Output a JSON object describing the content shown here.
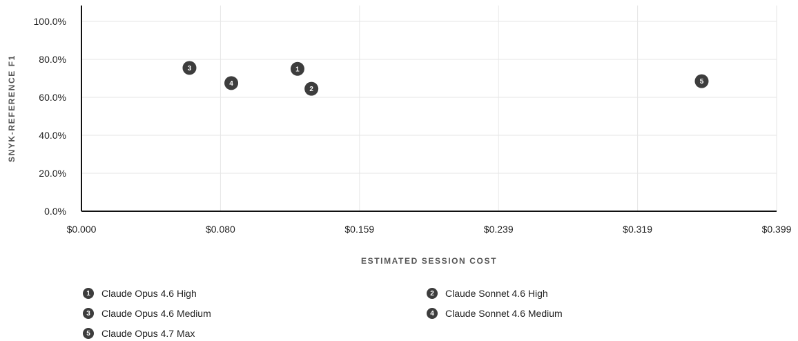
{
  "chart_data": {
    "type": "scatter",
    "title": "",
    "xlabel": "ESTIMATED SESSION COST",
    "ylabel": "SNYK-REFERENCE F1",
    "xlim": [
      0,
      0.399
    ],
    "ylim": [
      0,
      1.0
    ],
    "x_ticks": [
      "$0.000",
      "$0.080",
      "$0.159",
      "$0.239",
      "$0.319",
      "$0.399"
    ],
    "x_tick_values": [
      0,
      0.0798,
      0.1596,
      0.2394,
      0.3192,
      0.399
    ],
    "y_ticks": [
      "0.0%",
      "20.0%",
      "40.0%",
      "60.0%",
      "80.0%",
      "100.0%"
    ],
    "y_tick_values": [
      0,
      0.2,
      0.4,
      0.6,
      0.8,
      1.0
    ],
    "grid": true,
    "legend_position": "bottom",
    "marker_color": "#3d3d3d",
    "points": [
      {
        "id": "1",
        "name": "Claude Opus 4.6 High",
        "x": 0.124,
        "y": 0.75
      },
      {
        "id": "2",
        "name": "Claude Sonnet 4.6 High",
        "x": 0.132,
        "y": 0.645
      },
      {
        "id": "3",
        "name": "Claude Opus 4.6 Medium",
        "x": 0.062,
        "y": 0.755
      },
      {
        "id": "4",
        "name": "Claude Sonnet 4.6 Medium",
        "x": 0.086,
        "y": 0.675
      },
      {
        "id": "5",
        "name": "Claude Opus 4.7 Max",
        "x": 0.356,
        "y": 0.685
      }
    ]
  }
}
